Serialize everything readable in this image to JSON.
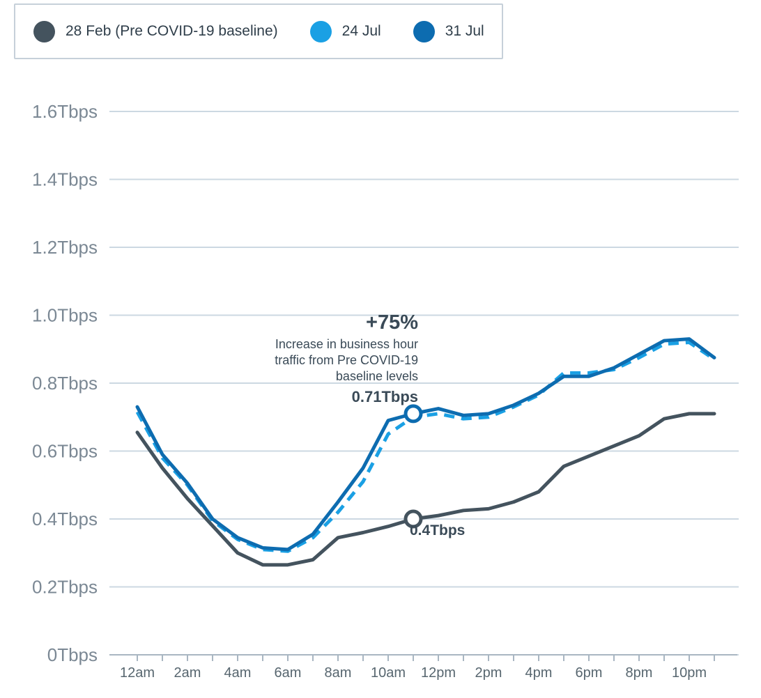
{
  "legend": {
    "items": [
      {
        "label": "28 Feb (Pre COVID-19 baseline)",
        "color": "#44535e"
      },
      {
        "label": "24 Jul",
        "color": "#1aa0e4"
      },
      {
        "label": "31 Jul",
        "color": "#0d6cb0"
      }
    ]
  },
  "annotation": {
    "headline": "+75%",
    "lines": [
      "Increase in business hour",
      "traffic from Pre COVID-19",
      "baseline levels"
    ],
    "value_label": "0.71Tbps",
    "baseline_label": "0.4Tbps"
  },
  "chart_data": {
    "type": "line",
    "title": "",
    "xlabel": "",
    "ylabel": "",
    "ylim": [
      0,
      1.6
    ],
    "grid": true,
    "legend_position": "top-left",
    "x_unit": "hour of day",
    "hours": [
      0,
      1,
      2,
      3,
      4,
      5,
      6,
      7,
      8,
      9,
      10,
      11,
      12,
      13,
      14,
      15,
      16,
      17,
      18,
      19,
      20,
      21,
      22,
      23
    ],
    "x_ticks": [
      {
        "h": 0,
        "label": "12am"
      },
      {
        "h": 2,
        "label": "2am"
      },
      {
        "h": 4,
        "label": "4am"
      },
      {
        "h": 6,
        "label": "6am"
      },
      {
        "h": 8,
        "label": "8am"
      },
      {
        "h": 10,
        "label": "10am"
      },
      {
        "h": 12,
        "label": "12pm"
      },
      {
        "h": 14,
        "label": "2pm"
      },
      {
        "h": 16,
        "label": "4pm"
      },
      {
        "h": 18,
        "label": "6pm"
      },
      {
        "h": 20,
        "label": "8pm"
      },
      {
        "h": 22,
        "label": "10pm"
      }
    ],
    "y_ticks": [
      {
        "v": 0,
        "label": "0Tbps"
      },
      {
        "v": 0.2,
        "label": "0.2Tbps"
      },
      {
        "v": 0.4,
        "label": "0.4Tbps"
      },
      {
        "v": 0.6,
        "label": "0.6Tbps"
      },
      {
        "v": 0.8,
        "label": "0.8Tbps"
      },
      {
        "v": 1.0,
        "label": "1.0Tbps"
      },
      {
        "v": 1.2,
        "label": "1.2Tbps"
      },
      {
        "v": 1.4,
        "label": "1.4Tbps"
      },
      {
        "v": 1.6,
        "label": "1.6Tbps"
      }
    ],
    "series": [
      {
        "name": "28 Feb (Pre COVID-19 baseline)",
        "color": "#44535e",
        "style": "solid",
        "values": [
          0.655,
          0.55,
          0.46,
          0.38,
          0.3,
          0.265,
          0.265,
          0.28,
          0.345,
          0.36,
          0.378,
          0.4,
          0.41,
          0.425,
          0.43,
          0.45,
          0.48,
          0.555,
          0.585,
          0.615,
          0.645,
          0.695,
          0.71,
          0.71
        ]
      },
      {
        "name": "24 Jul",
        "color": "#1aa0e4",
        "style": "dashed",
        "values": [
          0.715,
          0.58,
          0.5,
          0.395,
          0.34,
          0.31,
          0.305,
          0.345,
          0.42,
          0.51,
          0.65,
          0.7,
          0.71,
          0.695,
          0.7,
          0.73,
          0.765,
          0.83,
          0.83,
          0.84,
          0.875,
          0.915,
          0.92,
          0.87
        ]
      },
      {
        "name": "31 Jul",
        "color": "#0d6cb0",
        "style": "solid",
        "values": [
          0.73,
          0.59,
          0.505,
          0.4,
          0.345,
          0.315,
          0.31,
          0.355,
          0.45,
          0.55,
          0.69,
          0.71,
          0.725,
          0.705,
          0.71,
          0.735,
          0.77,
          0.82,
          0.82,
          0.845,
          0.885,
          0.925,
          0.93,
          0.875
        ]
      }
    ],
    "markers": [
      {
        "series": "31 Jul",
        "x_hour": 11,
        "value": 0.71,
        "color": "#0d6cb0"
      },
      {
        "series": "28 Feb (Pre COVID-19 baseline)",
        "x_hour": 11,
        "value": 0.4,
        "color": "#44535e"
      }
    ],
    "annotations": [
      {
        "text": "+75% Increase in business hour traffic from Pre COVID-19 baseline levels"
      }
    ]
  }
}
